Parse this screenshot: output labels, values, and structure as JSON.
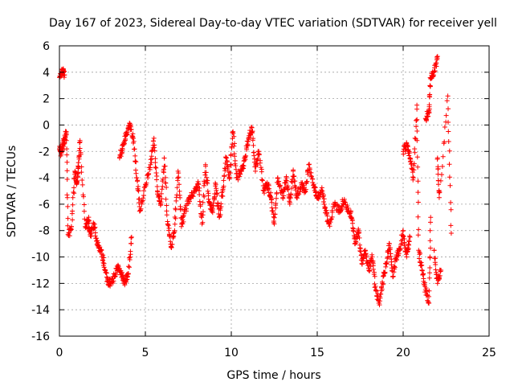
{
  "chart_data": {
    "type": "scatter",
    "title": "Day 167 of 2023, Sidereal Day-to-day VTEC variation (SDTVAR) for receiver yell",
    "xlabel": "GPS time / hours",
    "ylabel": "SDTVAR / TECUs",
    "xlim": [
      0,
      25
    ],
    "ylim": [
      -16,
      6
    ],
    "xticks": [
      0,
      5,
      10,
      15,
      20,
      25
    ],
    "yticks": [
      -16,
      -14,
      -12,
      -10,
      -8,
      -6,
      -4,
      -2,
      0,
      2,
      4,
      6
    ],
    "grid": true,
    "marker": "+",
    "color": "#ff0000",
    "series": [
      {
        "name": "SDTVAR",
        "anchors": [
          [
            0.0,
            3.6
          ],
          [
            0.2,
            4.2
          ],
          [
            0.3,
            3.8
          ],
          [
            0.0,
            -1.8
          ],
          [
            0.1,
            -2.1
          ],
          [
            0.2,
            -1.5
          ],
          [
            0.3,
            -1.1
          ],
          [
            0.4,
            -0.5
          ],
          [
            0.5,
            -8.3
          ],
          [
            0.7,
            -7.9
          ],
          [
            0.9,
            -3.5
          ],
          [
            1.0,
            -4.5
          ],
          [
            1.1,
            -3.3
          ],
          [
            1.2,
            -1.3
          ],
          [
            1.5,
            -7.7
          ],
          [
            1.7,
            -7.2
          ],
          [
            1.8,
            -8.4
          ],
          [
            2.0,
            -7.5
          ],
          [
            2.2,
            -9.0
          ],
          [
            2.4,
            -9.5
          ],
          [
            2.6,
            -10.5
          ],
          [
            2.8,
            -11.8
          ],
          [
            3.0,
            -12.0
          ],
          [
            3.2,
            -11.5
          ],
          [
            3.4,
            -10.8
          ],
          [
            3.6,
            -11.2
          ],
          [
            3.8,
            -12.0
          ],
          [
            4.0,
            -11.3
          ],
          [
            4.2,
            -8.5
          ],
          [
            3.5,
            -2.5
          ],
          [
            3.7,
            -1.5
          ],
          [
            3.9,
            -0.7
          ],
          [
            4.1,
            0.0
          ],
          [
            4.3,
            -1.0
          ],
          [
            4.5,
            -4.0
          ],
          [
            4.7,
            -6.5
          ],
          [
            5.0,
            -4.5
          ],
          [
            5.3,
            -3.0
          ],
          [
            5.5,
            -1.0
          ],
          [
            5.7,
            -5.0
          ],
          [
            5.9,
            -6.0
          ],
          [
            6.1,
            -2.5
          ],
          [
            6.3,
            -7.5
          ],
          [
            6.5,
            -9.2
          ],
          [
            6.7,
            -8.0
          ],
          [
            6.9,
            -3.5
          ],
          [
            7.1,
            -7.7
          ],
          [
            7.3,
            -6.5
          ],
          [
            7.6,
            -5.5
          ],
          [
            7.9,
            -5.0
          ],
          [
            8.1,
            -4.5
          ],
          [
            8.3,
            -7.5
          ],
          [
            8.5,
            -3.0
          ],
          [
            8.7,
            -5.8
          ],
          [
            8.9,
            -6.5
          ],
          [
            9.1,
            -4.5
          ],
          [
            9.3,
            -7.0
          ],
          [
            9.5,
            -5.0
          ],
          [
            9.7,
            -2.5
          ],
          [
            9.9,
            -4.0
          ],
          [
            10.1,
            -0.5
          ],
          [
            10.3,
            -4.0
          ],
          [
            10.6,
            -3.5
          ],
          [
            10.8,
            -2.5
          ],
          [
            11.0,
            -1.0
          ],
          [
            11.2,
            -0.2
          ],
          [
            11.4,
            -3.5
          ],
          [
            11.6,
            -2.0
          ],
          [
            11.9,
            -5.0
          ],
          [
            12.1,
            -4.5
          ],
          [
            12.3,
            -5.5
          ],
          [
            12.5,
            -7.5
          ],
          [
            12.7,
            -4.0
          ],
          [
            13.0,
            -5.5
          ],
          [
            13.2,
            -4.0
          ],
          [
            13.4,
            -6.0
          ],
          [
            13.6,
            -3.5
          ],
          [
            13.8,
            -5.5
          ],
          [
            14.1,
            -4.5
          ],
          [
            14.3,
            -5.0
          ],
          [
            14.5,
            -3.0
          ],
          [
            14.8,
            -4.5
          ],
          [
            15.0,
            -5.5
          ],
          [
            15.3,
            -5.0
          ],
          [
            15.5,
            -6.5
          ],
          [
            15.7,
            -7.5
          ],
          [
            16.0,
            -6.0
          ],
          [
            16.3,
            -6.5
          ],
          [
            16.5,
            -5.8
          ],
          [
            16.8,
            -6.3
          ],
          [
            17.0,
            -7.0
          ],
          [
            17.2,
            -9.0
          ],
          [
            17.4,
            -8.0
          ],
          [
            17.6,
            -10.5
          ],
          [
            17.8,
            -9.5
          ],
          [
            18.0,
            -11.0
          ],
          [
            18.2,
            -10.0
          ],
          [
            18.4,
            -12.5
          ],
          [
            18.6,
            -13.5
          ],
          [
            18.8,
            -12.0
          ],
          [
            19.0,
            -10.5
          ],
          [
            19.2,
            -9.0
          ],
          [
            19.4,
            -11.5
          ],
          [
            19.6,
            -10.0
          ],
          [
            19.8,
            -9.5
          ],
          [
            20.0,
            -8.0
          ],
          [
            20.2,
            -10.0
          ],
          [
            20.4,
            -8.5
          ],
          [
            20.0,
            -2.0
          ],
          [
            20.2,
            -1.5
          ],
          [
            20.4,
            -2.5
          ],
          [
            20.6,
            -4.0
          ],
          [
            20.8,
            1.5
          ],
          [
            20.9,
            -9.5
          ],
          [
            21.1,
            -11.0
          ],
          [
            21.3,
            -12.5
          ],
          [
            21.5,
            -13.5
          ],
          [
            21.6,
            -7.0
          ],
          [
            21.3,
            0.5
          ],
          [
            21.5,
            1.0
          ],
          [
            21.6,
            3.5
          ],
          [
            21.8,
            4.0
          ],
          [
            22.0,
            5.2
          ],
          [
            21.8,
            -9.5
          ],
          [
            22.0,
            -12.0
          ],
          [
            22.2,
            -11.0
          ],
          [
            22.0,
            -2.5
          ],
          [
            22.1,
            -5.5
          ],
          [
            22.6,
            2.2
          ],
          [
            22.8,
            -8.2
          ]
        ]
      }
    ]
  }
}
